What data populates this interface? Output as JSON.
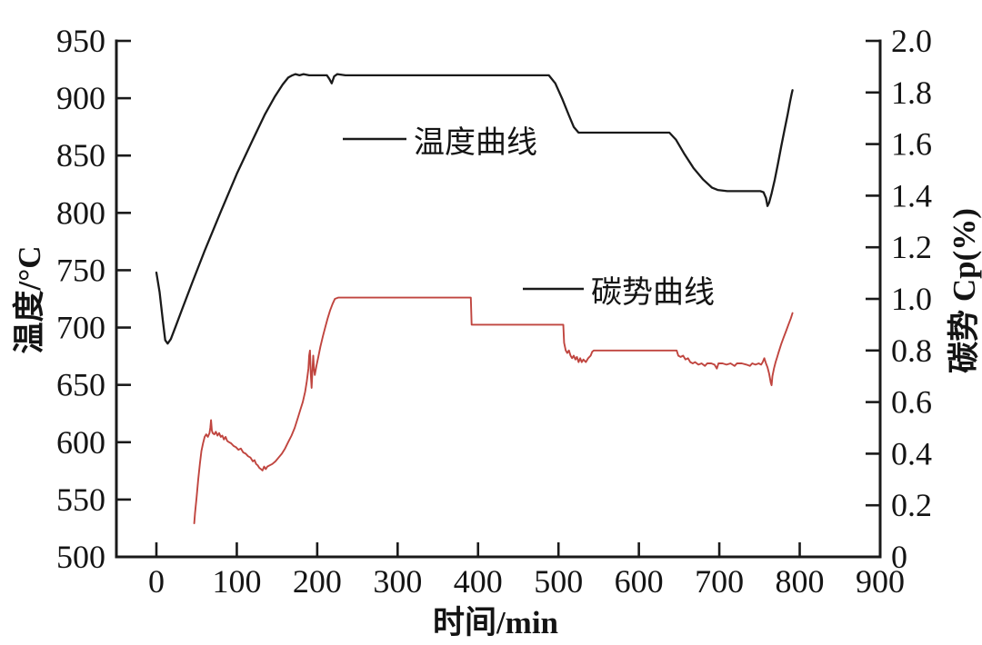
{
  "figure": {
    "background": "#ffffff",
    "axis_color": "#1a1a1a",
    "legend": [
      {
        "label": "温度曲线",
        "series": "temperature",
        "swatch_color": "#1a1a1a"
      },
      {
        "label": "碳势曲线",
        "series": "carbon_potential",
        "swatch_color": "#1a1a1a"
      }
    ]
  },
  "chart_data": {
    "type": "line",
    "title": "",
    "xlabel": "时间/min",
    "ylabel_left": "温度/°C",
    "ylabel_right": "碳势 Cp(%)",
    "x_axis": {
      "range": [
        0,
        900
      ],
      "tick_step": 100,
      "ticks": [
        {
          "v": 0,
          "label": "0"
        },
        {
          "v": 100,
          "label": "100"
        },
        {
          "v": 200,
          "label": "200"
        },
        {
          "v": 300,
          "label": "300"
        },
        {
          "v": 400,
          "label": "400"
        },
        {
          "v": 500,
          "label": "500"
        },
        {
          "v": 600,
          "label": "600"
        },
        {
          "v": 700,
          "label": "700"
        },
        {
          "v": 800,
          "label": "800"
        },
        {
          "v": 900,
          "label": "900"
        }
      ]
    },
    "y_left_axis": {
      "range": [
        500,
        950
      ],
      "tick_step": 50,
      "ticks": [
        {
          "v": 500,
          "label": "500"
        },
        {
          "v": 550,
          "label": "550"
        },
        {
          "v": 600,
          "label": "600"
        },
        {
          "v": 650,
          "label": "650"
        },
        {
          "v": 700,
          "label": "700"
        },
        {
          "v": 750,
          "label": "750"
        },
        {
          "v": 800,
          "label": "800"
        },
        {
          "v": 850,
          "label": "850"
        },
        {
          "v": 900,
          "label": "900"
        },
        {
          "v": 950,
          "label": "950"
        }
      ]
    },
    "y_right_axis": {
      "range": [
        0,
        2.0
      ],
      "tick_step": 0.2,
      "ticks": [
        {
          "v": 0,
          "label": "0"
        },
        {
          "v": 0.2,
          "label": "0.2"
        },
        {
          "v": 0.4,
          "label": "0.4"
        },
        {
          "v": 0.6,
          "label": "0.6"
        },
        {
          "v": 0.8,
          "label": "0.8"
        },
        {
          "v": 1.0,
          "label": "1.0"
        },
        {
          "v": 1.2,
          "label": "1.2"
        },
        {
          "v": 1.4,
          "label": "1.4"
        },
        {
          "v": 1.6,
          "label": "1.6"
        },
        {
          "v": 1.8,
          "label": "1.8"
        },
        {
          "v": 2.0,
          "label": "2.0"
        }
      ]
    },
    "grid": false,
    "legend_position": "inside-plot",
    "series": [
      {
        "name": "温度曲线",
        "axis": "left",
        "color": "#1a1a1a",
        "units": "°C",
        "points": [
          [
            0,
            748
          ],
          [
            4,
            731
          ],
          [
            8,
            706
          ],
          [
            11,
            689
          ],
          [
            14,
            686
          ],
          [
            18,
            690
          ],
          [
            24,
            701
          ],
          [
            32,
            716
          ],
          [
            45,
            740
          ],
          [
            60,
            767
          ],
          [
            80,
            801
          ],
          [
            100,
            834
          ],
          [
            120,
            864
          ],
          [
            135,
            886
          ],
          [
            147,
            901
          ],
          [
            157,
            912
          ],
          [
            164,
            918
          ],
          [
            169,
            920
          ],
          [
            173,
            921
          ],
          [
            178,
            920
          ],
          [
            183,
            921
          ],
          [
            190,
            920
          ],
          [
            200,
            920
          ],
          [
            212,
            920
          ],
          [
            215,
            917
          ],
          [
            218,
            913
          ],
          [
            221,
            919
          ],
          [
            225,
            921
          ],
          [
            235,
            920
          ],
          [
            260,
            920
          ],
          [
            300,
            920
          ],
          [
            340,
            920
          ],
          [
            380,
            920
          ],
          [
            420,
            920
          ],
          [
            460,
            920
          ],
          [
            488,
            920
          ],
          [
            496,
            913
          ],
          [
            505,
            899
          ],
          [
            513,
            885
          ],
          [
            519,
            875
          ],
          [
            525,
            870
          ],
          [
            560,
            870
          ],
          [
            600,
            870
          ],
          [
            638,
            870
          ],
          [
            646,
            864
          ],
          [
            656,
            852
          ],
          [
            668,
            839
          ],
          [
            680,
            829
          ],
          [
            691,
            822
          ],
          [
            698,
            820
          ],
          [
            710,
            819
          ],
          [
            725,
            819
          ],
          [
            740,
            819
          ],
          [
            751,
            819
          ],
          [
            755,
            818
          ],
          [
            758,
            813
          ],
          [
            760,
            806
          ],
          [
            762,
            809
          ],
          [
            765,
            817
          ],
          [
            769,
            829
          ],
          [
            773,
            843
          ],
          [
            777,
            858
          ],
          [
            781,
            872
          ],
          [
            785,
            886
          ],
          [
            788,
            897
          ],
          [
            790,
            904
          ],
          [
            791,
            907
          ]
        ]
      },
      {
        "name": "碳势曲线",
        "axis": "right",
        "color": "#c0453f",
        "units": "%",
        "points": [
          [
            47,
            0.13
          ],
          [
            48,
            0.17
          ],
          [
            50,
            0.23
          ],
          [
            52,
            0.3
          ],
          [
            54,
            0.36
          ],
          [
            56,
            0.41
          ],
          [
            58,
            0.44
          ],
          [
            60,
            0.465
          ],
          [
            62,
            0.475
          ],
          [
            64,
            0.465
          ],
          [
            66,
            0.48
          ],
          [
            67,
            0.5
          ],
          [
            68,
            0.53
          ],
          [
            69,
            0.49
          ],
          [
            70,
            0.48
          ],
          [
            72,
            0.475
          ],
          [
            74,
            0.485
          ],
          [
            76,
            0.47
          ],
          [
            78,
            0.48
          ],
          [
            80,
            0.465
          ],
          [
            82,
            0.47
          ],
          [
            84,
            0.455
          ],
          [
            86,
            0.465
          ],
          [
            88,
            0.45
          ],
          [
            90,
            0.445
          ],
          [
            93,
            0.44
          ],
          [
            96,
            0.43
          ],
          [
            99,
            0.425
          ],
          [
            102,
            0.415
          ],
          [
            105,
            0.42
          ],
          [
            108,
            0.405
          ],
          [
            111,
            0.4
          ],
          [
            114,
            0.39
          ],
          [
            117,
            0.385
          ],
          [
            120,
            0.37
          ],
          [
            122,
            0.375
          ],
          [
            124,
            0.36
          ],
          [
            126,
            0.355
          ],
          [
            128,
            0.345
          ],
          [
            130,
            0.34
          ],
          [
            132,
            0.335
          ],
          [
            134,
            0.35
          ],
          [
            136,
            0.34
          ],
          [
            138,
            0.35
          ],
          [
            141,
            0.355
          ],
          [
            144,
            0.36
          ],
          [
            148,
            0.37
          ],
          [
            152,
            0.385
          ],
          [
            156,
            0.4
          ],
          [
            160,
            0.42
          ],
          [
            164,
            0.445
          ],
          [
            168,
            0.47
          ],
          [
            172,
            0.5
          ],
          [
            176,
            0.54
          ],
          [
            179,
            0.57
          ],
          [
            182,
            0.6
          ],
          [
            185,
            0.64
          ],
          [
            187,
            0.68
          ],
          [
            189,
            0.73
          ],
          [
            190,
            0.78
          ],
          [
            191,
            0.8
          ],
          [
            192,
            0.71
          ],
          [
            193,
            0.655
          ],
          [
            194,
            0.72
          ],
          [
            195,
            0.78
          ],
          [
            196,
            0.73
          ],
          [
            197,
            0.705
          ],
          [
            199,
            0.74
          ],
          [
            201,
            0.77
          ],
          [
            204,
            0.815
          ],
          [
            207,
            0.855
          ],
          [
            210,
            0.89
          ],
          [
            213,
            0.925
          ],
          [
            216,
            0.955
          ],
          [
            219,
            0.98
          ],
          [
            222,
            1.0
          ],
          [
            226,
            1.005
          ],
          [
            250,
            1.005
          ],
          [
            280,
            1.005
          ],
          [
            310,
            1.005
          ],
          [
            340,
            1.005
          ],
          [
            370,
            1.005
          ],
          [
            391,
            1.005
          ],
          [
            392,
            0.9
          ],
          [
            410,
            0.9
          ],
          [
            430,
            0.9
          ],
          [
            450,
            0.9
          ],
          [
            470,
            0.9
          ],
          [
            490,
            0.9
          ],
          [
            506,
            0.9
          ],
          [
            507,
            0.83
          ],
          [
            509,
            0.8
          ],
          [
            511,
            0.79
          ],
          [
            513,
            0.8
          ],
          [
            515,
            0.78
          ],
          [
            517,
            0.77
          ],
          [
            519,
            0.78
          ],
          [
            521,
            0.765
          ],
          [
            523,
            0.775
          ],
          [
            525,
            0.755
          ],
          [
            527,
            0.77
          ],
          [
            529,
            0.755
          ],
          [
            531,
            0.765
          ],
          [
            534,
            0.755
          ],
          [
            537,
            0.77
          ],
          [
            540,
            0.78
          ],
          [
            542,
            0.795
          ],
          [
            544,
            0.8
          ],
          [
            560,
            0.8
          ],
          [
            580,
            0.8
          ],
          [
            605,
            0.8
          ],
          [
            630,
            0.8
          ],
          [
            647,
            0.8
          ],
          [
            649,
            0.78
          ],
          [
            652,
            0.775
          ],
          [
            655,
            0.78
          ],
          [
            658,
            0.765
          ],
          [
            661,
            0.77
          ],
          [
            664,
            0.755
          ],
          [
            667,
            0.75
          ],
          [
            670,
            0.755
          ],
          [
            674,
            0.745
          ],
          [
            678,
            0.75
          ],
          [
            682,
            0.74
          ],
          [
            685,
            0.75
          ],
          [
            690,
            0.75
          ],
          [
            694,
            0.745
          ],
          [
            697,
            0.73
          ],
          [
            699,
            0.75
          ],
          [
            704,
            0.75
          ],
          [
            709,
            0.745
          ],
          [
            714,
            0.75
          ],
          [
            719,
            0.74
          ],
          [
            722,
            0.75
          ],
          [
            728,
            0.75
          ],
          [
            734,
            0.745
          ],
          [
            738,
            0.74
          ],
          [
            741,
            0.75
          ],
          [
            745,
            0.745
          ],
          [
            749,
            0.75
          ],
          [
            752,
            0.745
          ],
          [
            754,
            0.755
          ],
          [
            756,
            0.77
          ],
          [
            758,
            0.75
          ],
          [
            760,
            0.735
          ],
          [
            762,
            0.71
          ],
          [
            764,
            0.675
          ],
          [
            765,
            0.665
          ],
          [
            766,
            0.7
          ],
          [
            768,
            0.73
          ],
          [
            770,
            0.755
          ],
          [
            772,
            0.775
          ],
          [
            774,
            0.795
          ],
          [
            777,
            0.825
          ],
          [
            780,
            0.85
          ],
          [
            783,
            0.875
          ],
          [
            786,
            0.9
          ],
          [
            789,
            0.925
          ],
          [
            791,
            0.945
          ]
        ]
      }
    ]
  }
}
